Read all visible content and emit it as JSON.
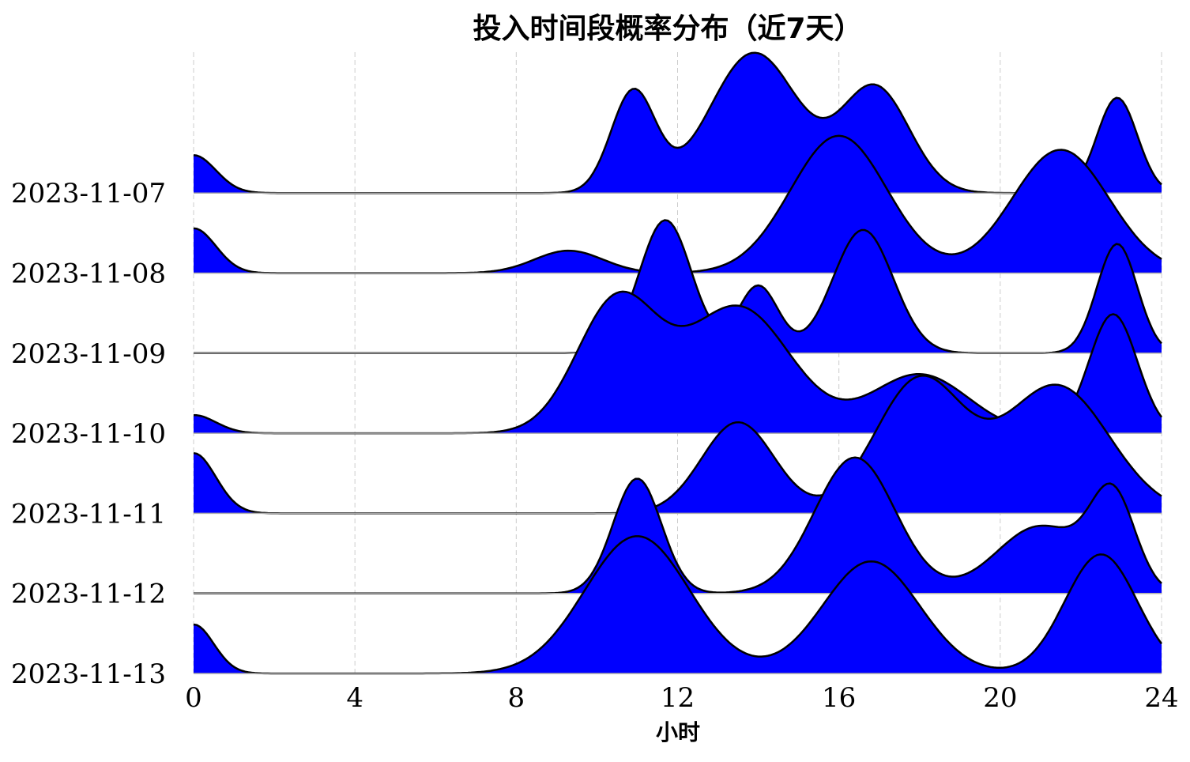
{
  "chart_data": {
    "type": "area",
    "title": "投入时间段概率分布（近7天）",
    "xlabel": "小时",
    "ylabel": "",
    "xlim": [
      0,
      24
    ],
    "x_ticks": [
      "0",
      "4",
      "8",
      "12",
      "16",
      "20",
      "24"
    ],
    "grid": "vertical dashed",
    "fill_color": "#0000ff",
    "line_color": "#000000",
    "ridge_overlap": 1.75,
    "series": [
      {
        "name": "2023-11-07",
        "peaks": [
          [
            0,
            0.27,
            0.55
          ],
          [
            10.9,
            0.72,
            0.55
          ],
          [
            13.9,
            1.0,
            1.1
          ],
          [
            16.9,
            0.75,
            0.85
          ],
          [
            22.9,
            0.68,
            0.5
          ]
        ]
      },
      {
        "name": "2023-11-08",
        "peaks": [
          [
            0,
            0.32,
            0.55
          ],
          [
            9.3,
            0.16,
            0.85
          ],
          [
            16.0,
            0.98,
            1.2
          ],
          [
            21.5,
            0.88,
            1.2
          ]
        ]
      },
      {
        "name": "2023-11-09",
        "peaks": [
          [
            11.7,
            0.95,
            0.65
          ],
          [
            14.0,
            0.48,
            0.5
          ],
          [
            16.6,
            0.88,
            0.75
          ],
          [
            22.9,
            0.78,
            0.5
          ]
        ]
      },
      {
        "name": "2023-11-10",
        "peaks": [
          [
            0,
            0.13,
            0.55
          ],
          [
            10.5,
            0.94,
            1.0
          ],
          [
            13.5,
            0.9,
            1.3
          ],
          [
            18.0,
            0.42,
            1.2
          ],
          [
            22.8,
            0.85,
            0.6
          ]
        ]
      },
      {
        "name": "2023-11-11",
        "peaks": [
          [
            0,
            0.43,
            0.55
          ],
          [
            13.5,
            0.65,
            0.9
          ],
          [
            18.0,
            0.95,
            1.1
          ],
          [
            21.4,
            0.91,
            1.3
          ]
        ]
      },
      {
        "name": "2023-11-12",
        "peaks": [
          [
            11.0,
            0.82,
            0.6
          ],
          [
            16.4,
            0.97,
            1.0
          ],
          [
            21.0,
            0.48,
            1.1
          ],
          [
            22.8,
            0.65,
            0.55
          ]
        ]
      },
      {
        "name": "2023-11-13",
        "peaks": [
          [
            0,
            0.35,
            0.5
          ],
          [
            11.0,
            0.98,
            1.3
          ],
          [
            16.8,
            0.8,
            1.2
          ],
          [
            22.5,
            0.85,
            0.9
          ]
        ]
      }
    ]
  }
}
